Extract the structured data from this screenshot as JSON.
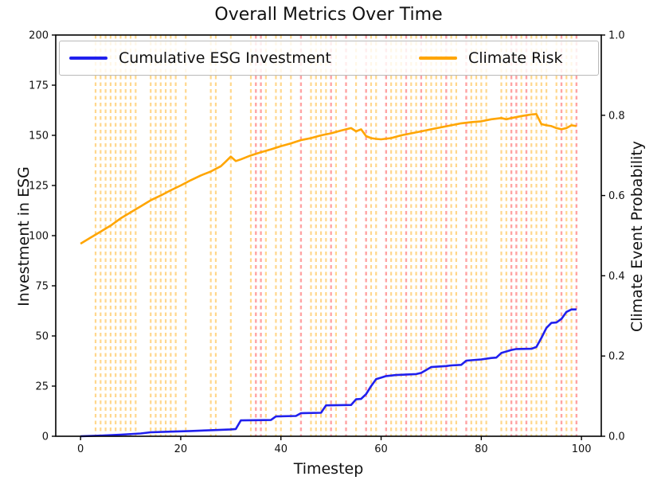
{
  "title": "Overall Metrics Over Time",
  "axes": {
    "x_label": "Timestep",
    "y_left_label": "Investment in ESG",
    "y_right_label": "Climate Event Probability",
    "x_ticks": [
      "0",
      "20",
      "40",
      "60",
      "80",
      "100"
    ],
    "x_tick_values": [
      0,
      20,
      40,
      60,
      80,
      100
    ],
    "y_left_ticks": [
      "0",
      "25",
      "50",
      "75",
      "100",
      "125",
      "150",
      "175",
      "200"
    ],
    "y_left_tick_values": [
      0,
      25,
      50,
      75,
      100,
      125,
      150,
      175,
      200
    ],
    "y_right_ticks": [
      "0.0",
      "0.2",
      "0.4",
      "0.6",
      "0.8",
      "1.0"
    ],
    "y_right_tick_values": [
      0,
      0.2,
      0.4,
      0.6,
      0.8,
      1.0
    ],
    "x_range": [
      -4.95,
      103.95
    ],
    "y_left_range": [
      0,
      200
    ],
    "y_right_range": [
      0,
      1
    ]
  },
  "legend": {
    "items": [
      {
        "label": "Cumulative ESG Investment",
        "color": "#2020ee"
      },
      {
        "label": "Climate Risk",
        "color": "#ffa500"
      }
    ]
  },
  "colors": {
    "esg_line": "#2020ee",
    "climate_line": "#ffa500",
    "investment_event_line": "rgba(255,166,0,0.45)",
    "climate_event_line": "rgba(255,50,50,0.45)",
    "spine": "#000000",
    "text": "#111111"
  },
  "chart_data": {
    "type": "line",
    "title": "Overall Metrics Over Time",
    "xlabel": "Timestep",
    "ylabel_left": "Investment in ESG",
    "ylabel_right": "Climate Event Probability",
    "xlim": [
      -4.95,
      103.95
    ],
    "ylim_left": [
      0,
      200
    ],
    "ylim_right": [
      0,
      1
    ],
    "grid": false,
    "legend_position": "upper center, 2 columns, semi-transparent",
    "series": [
      {
        "name": "Cumulative ESG Investment",
        "axis": "left",
        "color": "#2020ee",
        "style": "solid",
        "points": [
          [
            0,
            0
          ],
          [
            4,
            0.3
          ],
          [
            8,
            0.8
          ],
          [
            12,
            1.4
          ],
          [
            14,
            2.0
          ],
          [
            18,
            2.3
          ],
          [
            22,
            2.6
          ],
          [
            26,
            3.0
          ],
          [
            30,
            3.4
          ],
          [
            31,
            3.6
          ],
          [
            32,
            7.9
          ],
          [
            38,
            8.1
          ],
          [
            39,
            9.9
          ],
          [
            43,
            10.1
          ],
          [
            44,
            11.5
          ],
          [
            48,
            11.7
          ],
          [
            49,
            15.4
          ],
          [
            54,
            15.6
          ],
          [
            55,
            18.4
          ],
          [
            56,
            18.6
          ],
          [
            57,
            21.0
          ],
          [
            58,
            25.0
          ],
          [
            59,
            28.5
          ],
          [
            60,
            29.2
          ],
          [
            61,
            30.0
          ],
          [
            63,
            30.5
          ],
          [
            67,
            31.0
          ],
          [
            68,
            31.6
          ],
          [
            69,
            33.0
          ],
          [
            70,
            34.5
          ],
          [
            73,
            35.0
          ],
          [
            74,
            35.3
          ],
          [
            76,
            35.6
          ],
          [
            77,
            37.7
          ],
          [
            80,
            38.3
          ],
          [
            82,
            39.0
          ],
          [
            83,
            39.2
          ],
          [
            84,
            41.5
          ],
          [
            86,
            43.0
          ],
          [
            87,
            43.5
          ],
          [
            90,
            43.6
          ],
          [
            91,
            44.5
          ],
          [
            92,
            49.0
          ],
          [
            93,
            54.0
          ],
          [
            94,
            56.5
          ],
          [
            95,
            56.7
          ],
          [
            96,
            58.5
          ],
          [
            97,
            62.0
          ],
          [
            98,
            63.2
          ],
          [
            99,
            63.2
          ]
        ]
      },
      {
        "name": "Climate Risk",
        "axis": "right",
        "color": "#ffa500",
        "style": "solid",
        "points": [
          [
            0,
            0.48
          ],
          [
            2,
            0.495
          ],
          [
            4,
            0.51
          ],
          [
            6,
            0.525
          ],
          [
            8,
            0.543
          ],
          [
            10,
            0.558
          ],
          [
            12,
            0.573
          ],
          [
            14,
            0.588
          ],
          [
            16,
            0.6
          ],
          [
            18,
            0.613
          ],
          [
            20,
            0.625
          ],
          [
            22,
            0.638
          ],
          [
            24,
            0.65
          ],
          [
            26,
            0.66
          ],
          [
            28,
            0.673
          ],
          [
            29,
            0.685
          ],
          [
            30,
            0.697
          ],
          [
            31,
            0.686
          ],
          [
            32,
            0.69
          ],
          [
            34,
            0.7
          ],
          [
            36,
            0.708
          ],
          [
            38,
            0.715
          ],
          [
            40,
            0.723
          ],
          [
            42,
            0.73
          ],
          [
            44,
            0.738
          ],
          [
            46,
            0.743
          ],
          [
            48,
            0.75
          ],
          [
            50,
            0.755
          ],
          [
            52,
            0.762
          ],
          [
            54,
            0.768
          ],
          [
            55,
            0.76
          ],
          [
            56,
            0.765
          ],
          [
            57,
            0.748
          ],
          [
            58,
            0.743
          ],
          [
            59,
            0.741
          ],
          [
            60,
            0.74
          ],
          [
            62,
            0.743
          ],
          [
            64,
            0.75
          ],
          [
            66,
            0.755
          ],
          [
            68,
            0.76
          ],
          [
            70,
            0.765
          ],
          [
            72,
            0.77
          ],
          [
            74,
            0.775
          ],
          [
            76,
            0.78
          ],
          [
            78,
            0.783
          ],
          [
            80,
            0.785
          ],
          [
            82,
            0.79
          ],
          [
            84,
            0.793
          ],
          [
            85,
            0.79
          ],
          [
            86,
            0.793
          ],
          [
            88,
            0.798
          ],
          [
            90,
            0.802
          ],
          [
            91,
            0.803
          ],
          [
            92,
            0.778
          ],
          [
            93,
            0.775
          ],
          [
            94,
            0.773
          ],
          [
            95,
            0.768
          ],
          [
            96,
            0.765
          ],
          [
            97,
            0.768
          ],
          [
            98,
            0.775
          ],
          [
            99,
            0.773
          ]
        ]
      }
    ],
    "event_lines": {
      "style": "vertical dashed, full plot height",
      "investment_event_timesteps": [
        3,
        4,
        5,
        6,
        7,
        8,
        9,
        10,
        11,
        14,
        15,
        16,
        17,
        18,
        19,
        21,
        26,
        27,
        30,
        34,
        37,
        39,
        40,
        42,
        46,
        47,
        48,
        49,
        51,
        55,
        58,
        59,
        62,
        63,
        64,
        66,
        67,
        69,
        70,
        71,
        72,
        74,
        75,
        78,
        79,
        80,
        81,
        84,
        85,
        88,
        90,
        91,
        92,
        93,
        95,
        97,
        98
      ],
      "climate_event_timesteps": [
        35,
        36,
        44,
        50,
        53,
        57,
        61,
        65,
        68,
        73,
        77,
        86,
        87,
        89,
        96,
        99
      ]
    }
  }
}
